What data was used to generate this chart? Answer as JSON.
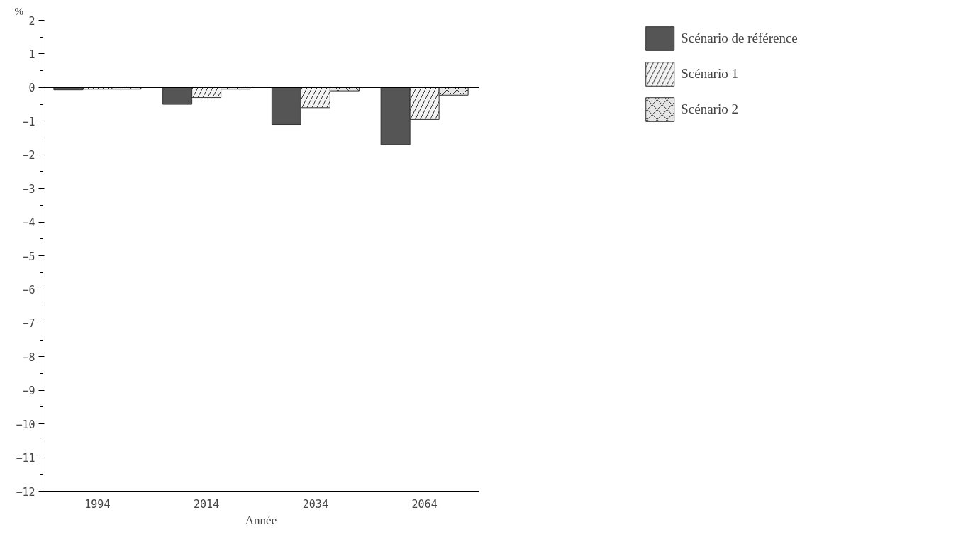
{
  "chart_data": {
    "type": "bar",
    "ylabel": "%",
    "xlabel": "Année",
    "categories": [
      "1994",
      "2014",
      "2034",
      "2064"
    ],
    "series": [
      {
        "name": "Scénario de référence",
        "color": "#555555",
        "values": [
          -0.07,
          -0.5,
          -1.1,
          -1.7
        ]
      },
      {
        "name": "Scénario 1",
        "color": "#f2f2f2",
        "values": [
          -0.05,
          -0.3,
          -0.6,
          -0.95
        ]
      },
      {
        "name": "Scénario 2",
        "color": "#e6e6e6",
        "values": [
          -0.05,
          -0.05,
          -0.1,
          -0.23
        ]
      }
    ],
    "ref_lines": [
      {
        "axis": "y",
        "value": 0
      }
    ],
    "ylim": [
      -12,
      2
    ],
    "yticks": [
      2,
      1,
      0,
      -1,
      -2,
      -3,
      -4,
      -5,
      -6,
      -7,
      -8,
      -9,
      -10,
      -11,
      -12
    ],
    "grid": false,
    "legend": "right"
  }
}
